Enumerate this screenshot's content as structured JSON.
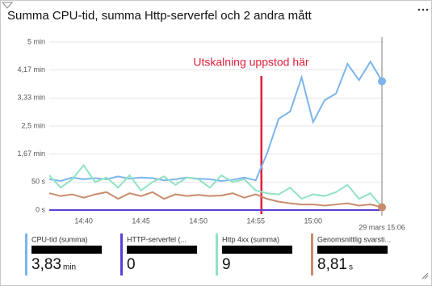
{
  "chart_data": {
    "type": "line",
    "title": "Summa CPU-tid, summa Http-serverfel och 2 andra mått",
    "annotation": "Utskalning uppstod här",
    "cursor_label": "29 mars 15:06",
    "categories": [
      null,
      null,
      null,
      "14:40",
      null,
      null,
      null,
      null,
      "14:45",
      null,
      null,
      null,
      null,
      "14:50",
      null,
      null,
      null,
      null,
      "14:55",
      null,
      null,
      null,
      null,
      "15:00",
      null,
      null,
      null,
      null,
      null,
      null
    ],
    "ylim": [
      0,
      300
    ],
    "yticks": [
      {
        "value": 0,
        "label": "0 s"
      },
      {
        "value": 50,
        "label": "50 s"
      },
      {
        "value": 100,
        "label": "1,67 min"
      },
      {
        "value": 150,
        "label": "2,5 min"
      },
      {
        "value": 200,
        "label": "3,33 min"
      },
      {
        "value": 250,
        "label": "4,17 min"
      },
      {
        "value": 300,
        "label": "5 min"
      }
    ],
    "grid": true,
    "series": [
      {
        "name": "CPU-tid (summa)",
        "color": "#7cb5ec",
        "summary": "3,83",
        "unit": "min",
        "values": [
          55,
          52,
          58,
          55,
          57,
          55,
          60,
          56,
          58,
          57,
          53,
          55,
          58,
          56,
          55,
          52,
          54,
          58,
          53,
          102,
          163,
          176,
          237,
          157,
          196,
          208,
          261,
          232,
          265,
          230
        ]
      },
      {
        "name": "HTTP-serverfel (...",
        "color": "#5a3fd6",
        "summary": "0",
        "unit": null,
        "values": [
          0,
          0,
          0,
          0,
          0,
          0,
          0,
          0,
          0,
          0,
          0,
          0,
          0,
          0,
          0,
          0,
          0,
          0,
          0,
          0,
          0,
          0,
          0,
          0,
          0,
          0,
          0,
          0,
          0,
          0
        ]
      },
      {
        "name": "Http 4xx (summa)",
        "color": "#8fe3c3",
        "summary": "9",
        "unit": null,
        "values": [
          62,
          40,
          55,
          80,
          50,
          58,
          40,
          62,
          35,
          50,
          60,
          45,
          58,
          55,
          40,
          62,
          50,
          55,
          35,
          30,
          28,
          40,
          20,
          28,
          25,
          32,
          45,
          20,
          30,
          5
        ]
      },
      {
        "name": "Genomsnittlig svarsti...",
        "color": "#c98b6b",
        "summary": "8,81",
        "unit": "s",
        "values": [
          30,
          25,
          28,
          22,
          28,
          32,
          20,
          30,
          25,
          32,
          20,
          28,
          25,
          27,
          25,
          26,
          30,
          22,
          28,
          20,
          15,
          12,
          10,
          10,
          8,
          10,
          12,
          8,
          10,
          5
        ]
      }
    ]
  }
}
